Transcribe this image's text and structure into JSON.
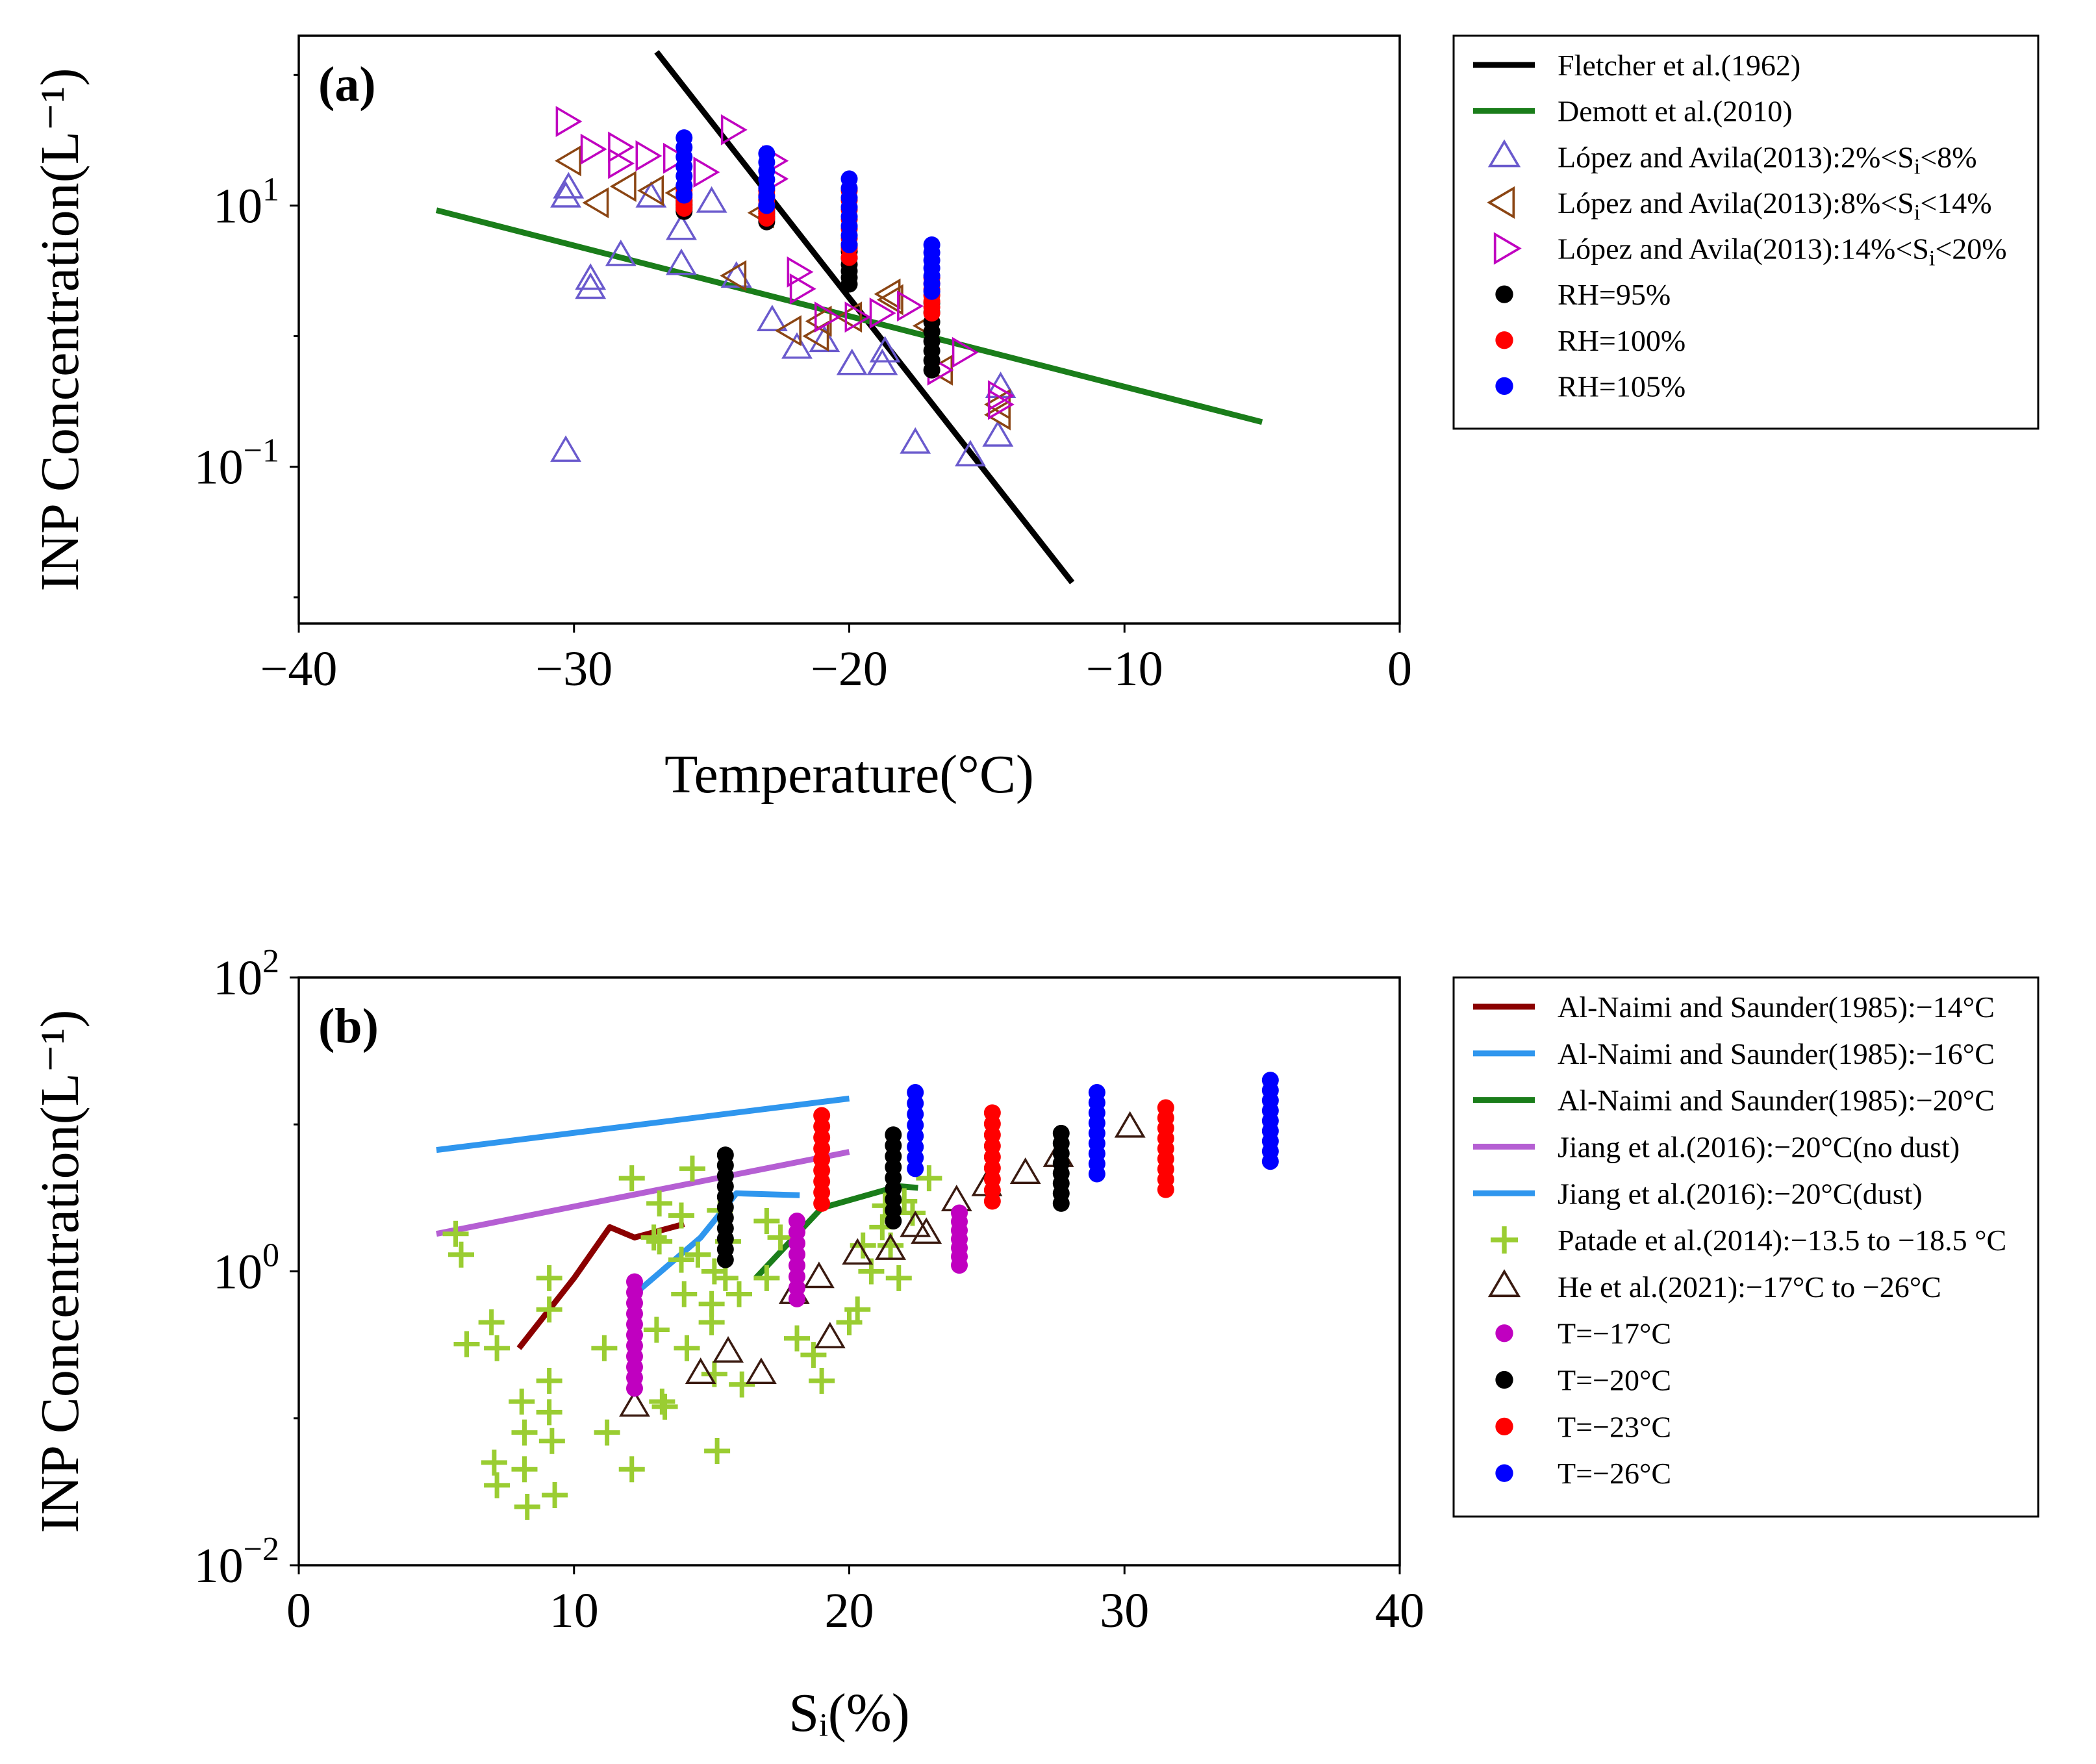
{
  "figure": {
    "panels": [
      "(a)",
      "(b)"
    ]
  },
  "chart_data": [
    {
      "type": "scatter",
      "panel_label": "(a)",
      "xlabel": "Temperature(°C)",
      "ylabel": "INP Concentration(L⁻¹)",
      "xlim": [
        -40,
        0
      ],
      "ylim_log10": [
        -2.2,
        2.3
      ],
      "yscale": "log",
      "x_ticks": [
        -40,
        -30,
        -20,
        -10,
        0
      ],
      "x_tick_labels": [
        "−40",
        "−30",
        "−20",
        "−10",
        "0"
      ],
      "y_ticks_log10": [
        -1,
        1
      ],
      "y_tick_labels": [
        {
          "base": "10",
          "exp": "−1"
        },
        {
          "base": "10",
          "exp": "1"
        }
      ],
      "legend_position": "outside-right",
      "series": [
        {
          "name": "Fletcher et al.(1962)",
          "kind": "line",
          "color": "#000000",
          "points": [
            [
              -27,
              150
            ],
            [
              -11.9,
              0.013
            ]
          ]
        },
        {
          "name": "Demott et al.(2010)",
          "kind": "line",
          "color": "#1a7d1a",
          "points": [
            [
              -35,
              9.2
            ],
            [
              -5,
              0.22
            ]
          ]
        },
        {
          "name": "López and Avila(2013):2%<S",
          "name_sub": "i",
          "name_tail": "<8%",
          "kind": "scatter",
          "marker": "triangle-up",
          "color": "#6a5acd",
          "points": [
            [
              -30.3,
              0.13
            ],
            [
              -30.3,
              11.5
            ],
            [
              -30.2,
              13.5
            ],
            [
              -29.4,
              2.3
            ],
            [
              -29.4,
              2.7
            ],
            [
              -28.3,
              4.1
            ],
            [
              -27.2,
              11.5
            ],
            [
              -26.1,
              6.5
            ],
            [
              -26.1,
              3.5
            ],
            [
              -25,
              10.5
            ],
            [
              -24.1,
              2.8
            ],
            [
              -22.8,
              1.3
            ],
            [
              -21.9,
              0.8
            ],
            [
              -20.9,
              0.9
            ],
            [
              -19.9,
              0.6
            ],
            [
              -18.8,
              0.6
            ],
            [
              -18.7,
              0.75
            ],
            [
              -17.6,
              0.15
            ],
            [
              -15.6,
              0.12
            ],
            [
              -14.6,
              0.17
            ],
            [
              -14.5,
              0.4
            ]
          ]
        },
        {
          "name": "López and Avila(2013):8%<S",
          "name_sub": "i",
          "name_tail": "<14%",
          "kind": "scatter",
          "marker": "triangle-left",
          "color": "#8b4513",
          "points": [
            [
              -30.1,
              22
            ],
            [
              -29.1,
              10.5
            ],
            [
              -28.1,
              14
            ],
            [
              -27.1,
              13
            ],
            [
              -26.1,
              12.5
            ],
            [
              -24.1,
              2.9
            ],
            [
              -23.1,
              8.8
            ],
            [
              -22.1,
              1.1
            ],
            [
              -21.1,
              1.0
            ],
            [
              -21,
              1.3
            ],
            [
              -19.9,
              1.4
            ],
            [
              -18.5,
              2.1
            ],
            [
              -18.4,
              1.9
            ],
            [
              -17.1,
              1.2
            ],
            [
              -16.6,
              0.55
            ],
            [
              -14.5,
              0.3
            ],
            [
              -14.5,
              0.25
            ]
          ]
        },
        {
          "name": "López and Avila(2013):14%<S",
          "name_sub": "i",
          "name_tail": "<20%",
          "kind": "scatter",
          "marker": "triangle-right",
          "color": "#c000c0",
          "points": [
            [
              -30.3,
              44
            ],
            [
              -29.4,
              27
            ],
            [
              -28.4,
              28
            ],
            [
              -28.4,
              21
            ],
            [
              -27.4,
              24
            ],
            [
              -26.4,
              23
            ],
            [
              -25.3,
              18
            ],
            [
              -24.3,
              38
            ],
            [
              -22.8,
              22
            ],
            [
              -22.8,
              16
            ],
            [
              -21.9,
              3.1
            ],
            [
              -21.8,
              2.3
            ],
            [
              -20.9,
              1.4
            ],
            [
              -19.8,
              1.4
            ],
            [
              -18.9,
              1.5
            ],
            [
              -17.9,
              1.7
            ],
            [
              -16.8,
              0.55
            ],
            [
              -15.9,
              0.75
            ],
            [
              -14.6,
              0.3
            ],
            [
              -14.6,
              0.35
            ]
          ]
        },
        {
          "name": "RH=95%",
          "kind": "scatter",
          "marker": "circle",
          "color": "#000000",
          "x_values": [
            -26,
            -23,
            -20,
            -17
          ],
          "y_ranges": [
            [
              9,
              11
            ],
            [
              7.5,
              10
            ],
            [
              2.5,
              5
            ],
            [
              0.55,
              1.8
            ]
          ]
        },
        {
          "name": "RH=100%",
          "kind": "scatter",
          "marker": "circle",
          "color": "#ff0000",
          "x_values": [
            -26,
            -23,
            -20,
            -17
          ],
          "y_ranges": [
            [
              9.5,
              14
            ],
            [
              8,
              13
            ],
            [
              4,
              13
            ],
            [
              1.5,
              2.8
            ]
          ]
        },
        {
          "name": "RH=105%",
          "kind": "scatter",
          "marker": "circle",
          "color": "#0000ff",
          "x_values": [
            -26,
            -23,
            -20,
            -17
          ],
          "y_ranges": [
            [
              12,
              33
            ],
            [
              10,
              25
            ],
            [
              5,
              16
            ],
            [
              2.2,
              5
            ]
          ]
        }
      ]
    },
    {
      "type": "scatter",
      "panel_label": "(b)",
      "xlabel": "S_i(%)",
      "ylabel": "INP Concentration(L⁻¹)",
      "xlim": [
        0,
        40
      ],
      "ylim_log10": [
        -2,
        2
      ],
      "yscale": "log",
      "x_ticks": [
        0,
        10,
        20,
        30,
        40
      ],
      "x_tick_labels": [
        "0",
        "10",
        "20",
        "30",
        "40"
      ],
      "y_ticks_log10": [
        -2,
        0,
        2
      ],
      "y_tick_labels": [
        {
          "base": "10",
          "exp": "−2"
        },
        {
          "base": "10",
          "exp": "0"
        },
        {
          "base": "10",
          "exp": "2"
        }
      ],
      "legend_position": "outside-right",
      "series": [
        {
          "name": "Al-Naimi and Saunder(1985):−14°C",
          "kind": "line",
          "color": "#8b0000",
          "points": [
            [
              8,
              0.3
            ],
            [
              10,
              0.9
            ],
            [
              11.3,
              2.0
            ],
            [
              12.2,
              1.7
            ],
            [
              14,
              2.1
            ]
          ]
        },
        {
          "name": "Al-Naimi and Saunder(1985):−16°C",
          "kind": "line",
          "color": "#2f96ee",
          "points": [
            [
              5,
              6.7
            ],
            [
              20,
              15
            ]
          ]
        },
        {
          "name": "Al-Naimi and Saunder(1985):−20°C",
          "kind": "line",
          "color": "#1a7d1a",
          "points": [
            [
              16.6,
              0.9
            ],
            [
              19,
              2.7
            ],
            [
              21.8,
              3.8
            ],
            [
              22.5,
              3.7
            ]
          ]
        },
        {
          "name": "Jiang et al.(2016):−20°C(no dust)",
          "kind": "line",
          "color": "#b55fd3",
          "points": [
            [
              5,
              1.8
            ],
            [
              20,
              6.5
            ]
          ]
        },
        {
          "name": "Jiang et al.(2016):−20°C(dust)",
          "kind": "line",
          "color": "#2f96ee",
          "points": [
            [
              12.2,
              0.7
            ],
            [
              14.6,
              1.7
            ],
            [
              15.9,
              3.4
            ],
            [
              18.2,
              3.3
            ]
          ]
        },
        {
          "name": "Patade et al.(2014):−13.5 to −18.5 °C",
          "kind": "scatter",
          "marker": "plus",
          "color": "#9acd32",
          "points": [
            [
              5.7,
              1.8
            ],
            [
              5.9,
              1.3
            ],
            [
              6.1,
              0.32
            ],
            [
              7,
              0.45
            ],
            [
              7.1,
              0.05
            ],
            [
              7.2,
              0.3
            ],
            [
              7.2,
              0.035
            ],
            [
              8.1,
              0.13
            ],
            [
              8.2,
              0.08
            ],
            [
              8.2,
              0.045
            ],
            [
              8.3,
              0.025
            ],
            [
              9.1,
              0.9
            ],
            [
              9.1,
              0.55
            ],
            [
              9.1,
              0.18
            ],
            [
              9.1,
              0.11
            ],
            [
              9.2,
              0.07
            ],
            [
              9.3,
              0.03
            ],
            [
              11.1,
              0.3
            ],
            [
              11.2,
              0.08
            ],
            [
              12.1,
              4.3
            ],
            [
              12.1,
              0.045
            ],
            [
              12.9,
              1.7
            ],
            [
              13,
              0.4
            ],
            [
              13.1,
              2.9
            ],
            [
              13.1,
              1.6
            ],
            [
              13.2,
              0.13
            ],
            [
              13.3,
              0.12
            ],
            [
              13.9,
              2.4
            ],
            [
              13.9,
              1.2
            ],
            [
              14,
              0.7
            ],
            [
              14.1,
              0.3
            ],
            [
              14.3,
              5.0
            ],
            [
              14.5,
              1.3
            ],
            [
              15,
              0.6
            ],
            [
              15,
              0.45
            ],
            [
              15.1,
              1.0
            ],
            [
              15.1,
              0.2
            ],
            [
              15.2,
              0.06
            ],
            [
              15.3,
              2.6
            ],
            [
              15.5,
              0.9
            ],
            [
              15.6,
              1.6
            ],
            [
              16,
              0.7
            ],
            [
              16.1,
              0.17
            ],
            [
              17,
              0.9
            ],
            [
              17,
              2.2
            ],
            [
              17.5,
              1.7
            ],
            [
              18.1,
              0.35
            ],
            [
              18.7,
              0.27
            ],
            [
              19,
              0.18
            ],
            [
              20,
              0.45
            ],
            [
              20.3,
              0.55
            ],
            [
              20.5,
              1.5
            ],
            [
              20.8,
              1.0
            ],
            [
              21.2,
              2.0
            ],
            [
              21.3,
              2.8
            ],
            [
              21.5,
              1.5
            ],
            [
              21.8,
              0.9
            ],
            [
              22,
              3.0
            ],
            [
              22.3,
              2.5
            ],
            [
              22.9,
              4.3
            ]
          ]
        },
        {
          "name": "He et al.(2021):−17°C to −26°C",
          "kind": "scatter",
          "marker": "triangle-up",
          "color": "#3a1a10",
          "points": [
            [
              12.2,
              0.12
            ],
            [
              14.6,
              0.2
            ],
            [
              15.6,
              0.28
            ],
            [
              16.8,
              0.2
            ],
            [
              18,
              0.7
            ],
            [
              18.9,
              0.9
            ],
            [
              19.3,
              0.35
            ],
            [
              20.3,
              1.3
            ],
            [
              21.5,
              1.4
            ],
            [
              22.4,
              2.0
            ],
            [
              22.8,
              1.8
            ],
            [
              23.9,
              3.0
            ],
            [
              25,
              3.8
            ],
            [
              26.4,
              4.6
            ],
            [
              27.6,
              6.0
            ],
            [
              30.2,
              9.5
            ]
          ]
        },
        {
          "name": "T=−17°C",
          "kind": "scatter",
          "marker": "circle",
          "color": "#c000c0",
          "x_values": [
            12.2,
            18.1,
            24
          ],
          "y_ranges": [
            [
              0.16,
              0.85
            ],
            [
              0.65,
              2.2
            ],
            [
              1.1,
              2.5
            ]
          ]
        },
        {
          "name": "T=−20°C",
          "kind": "scatter",
          "marker": "circle",
          "color": "#000000",
          "x_values": [
            15.5,
            21.6,
            27.7
          ],
          "y_ranges": [
            [
              1.2,
              6.2
            ],
            [
              2.2,
              8.5
            ],
            [
              2.9,
              8.7
            ]
          ]
        },
        {
          "name": "T=−23°C",
          "kind": "scatter",
          "marker": "circle",
          "color": "#ff0000",
          "x_values": [
            19,
            25.2,
            31.5
          ],
          "y_ranges": [
            [
              2.9,
              11.5
            ],
            [
              3.0,
              12
            ],
            [
              3.6,
              13
            ]
          ]
        },
        {
          "name": "T=−26°C",
          "kind": "scatter",
          "marker": "circle",
          "color": "#0000ff",
          "x_values": [
            22.4,
            29,
            35.3
          ],
          "y_ranges": [
            [
              5.0,
              16.5
            ],
            [
              4.6,
              16.5
            ],
            [
              5.6,
              20
            ]
          ]
        }
      ]
    }
  ]
}
